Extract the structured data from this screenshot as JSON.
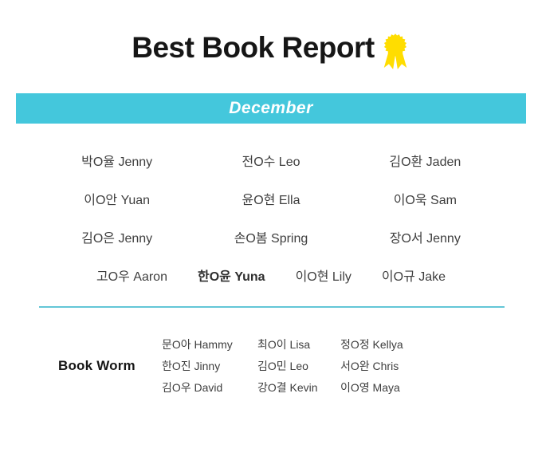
{
  "header": {
    "title": "Best Book Report",
    "medal_icon": "rosette-medal"
  },
  "banner": {
    "label": "December"
  },
  "winners": [
    [
      "박O율 Jenny",
      "전O수 Leo",
      "김O환 Jaden"
    ],
    [
      "이O안 Yuan",
      "윤O현 Ella",
      "이O욱 Sam"
    ],
    [
      "김O은 Jenny",
      "손O봄 Spring",
      "장O서 Jenny"
    ],
    [
      "고O우 Aaron",
      "한O윤 Yuna",
      "이O현 Lily",
      "이O규 Jake"
    ]
  ],
  "book_worm": {
    "label": "Book Worm",
    "columns": [
      [
        "문O아 Hammy",
        "한O진 Jinny",
        "김O우 David"
      ],
      [
        "최O이 Lisa",
        "김O민 Leo",
        "강O결 Kevin"
      ],
      [
        "정O정 Kellya",
        "서O완 Chris",
        "이O영 Maya"
      ]
    ]
  },
  "colors": {
    "background": "#ffffff",
    "accent": "#44c7dc",
    "banner_text": "#ffffff",
    "divider": "#63c6d7",
    "title": "#161616",
    "names": "#3e3e3e",
    "medal": "#ffdd00"
  }
}
